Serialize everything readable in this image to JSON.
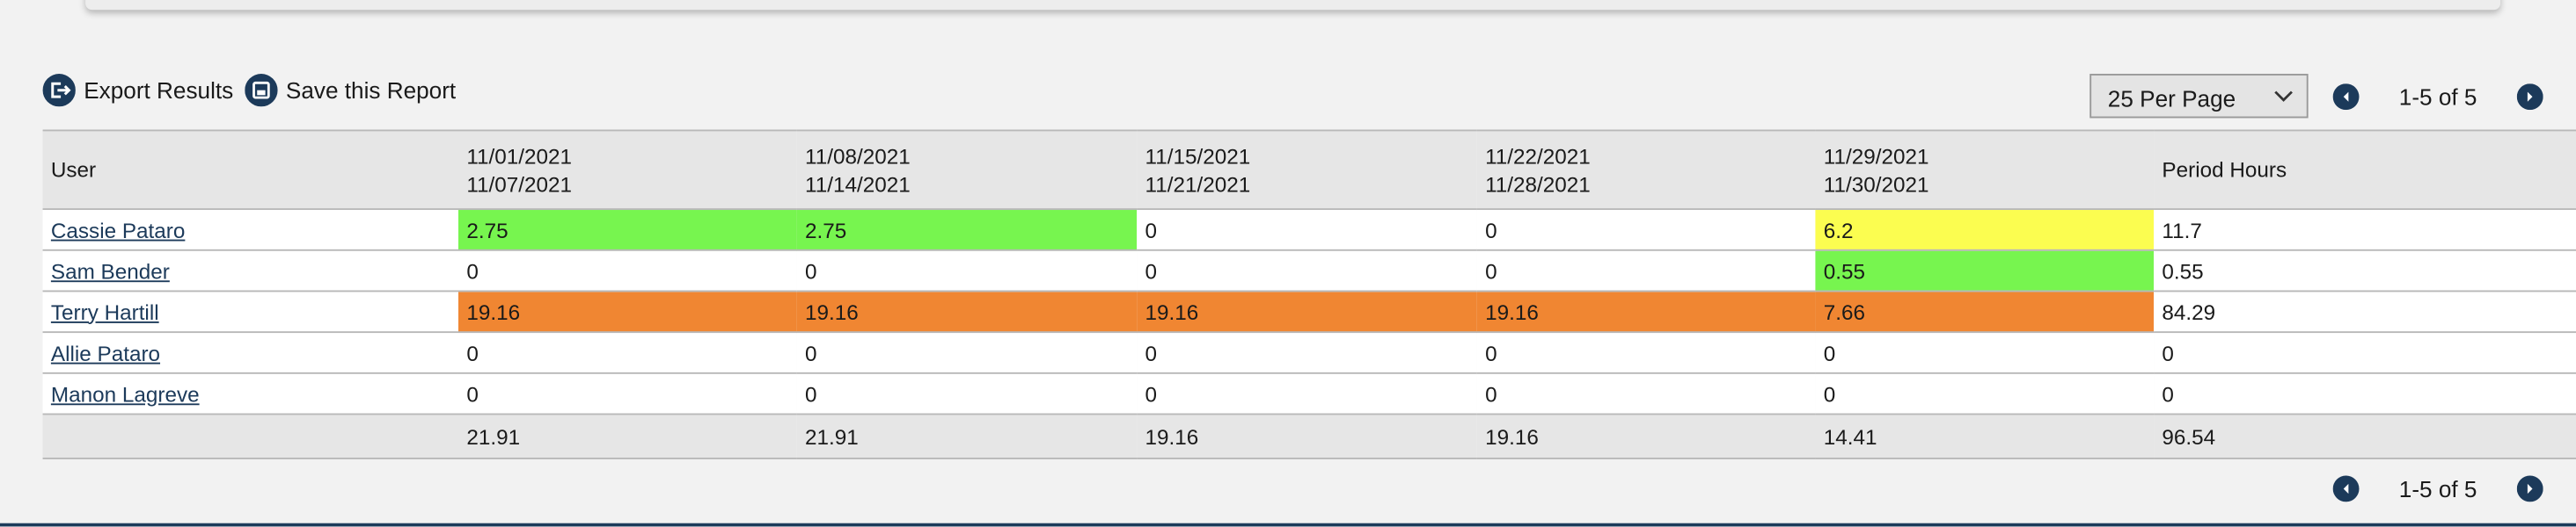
{
  "toolbar": {
    "export": "Export Results",
    "save": "Save this Report",
    "per_page": "25 Per Page"
  },
  "pagination_top": {
    "label": "1-5 of 5"
  },
  "pagination_bottom": {
    "label": "1-5 of 5"
  },
  "table": {
    "user_header": "User",
    "periods": [
      [
        "11/01/2021",
        "11/07/2021"
      ],
      [
        "11/08/2021",
        "11/14/2021"
      ],
      [
        "11/15/2021",
        "11/21/2021"
      ],
      [
        "11/22/2021",
        "11/28/2021"
      ],
      [
        "11/29/2021",
        "11/30/2021"
      ]
    ],
    "total_header": "Period Hours",
    "rows": [
      {
        "user": "Cassie Pataro",
        "hours": [
          2.75,
          2.75,
          0,
          0,
          6.2
        ],
        "colors": [
          "#77f54f",
          "#77f54f",
          null,
          null,
          "#fbfd50"
        ],
        "total": 11.7
      },
      {
        "user": "Sam Bender",
        "hours": [
          0,
          0,
          0,
          0,
          0.55
        ],
        "colors": [
          null,
          null,
          null,
          null,
          "#77f54f"
        ],
        "total": 0.55
      },
      {
        "user": "Terry Hartill",
        "hours": [
          19.16,
          19.16,
          19.16,
          19.16,
          7.66
        ],
        "colors": [
          "#f08632",
          "#f08632",
          "#f08632",
          "#f08632",
          "#f08632"
        ],
        "total": 84.29
      },
      {
        "user": "Allie Pataro",
        "hours": [
          0,
          0,
          0,
          0,
          0
        ],
        "colors": [
          null,
          null,
          null,
          null,
          null
        ],
        "total": 0
      },
      {
        "user": "Manon Lagreve",
        "hours": [
          0,
          0,
          0,
          0,
          0
        ],
        "colors": [
          null,
          null,
          null,
          null,
          null
        ],
        "total": 0
      }
    ],
    "footer": [
      21.91,
      21.91,
      19.16,
      19.16,
      14.41
    ],
    "footer_total": 96.54
  }
}
